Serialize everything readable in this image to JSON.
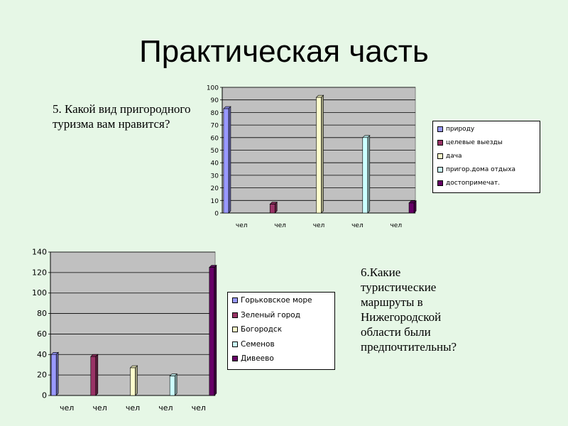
{
  "slide": {
    "title": "Практическая часть",
    "question1": "5. Какой вид пригородного туризма вам нравится?",
    "question2": "6.Какие туристические маршруты в Нижегородской области были предпочтительны?"
  },
  "chart_data": [
    {
      "type": "bar",
      "categories": [
        "чел",
        "чел",
        "чел",
        "чел",
        "чел"
      ],
      "ylim": [
        0,
        100
      ],
      "yticks": [
        0,
        10,
        20,
        30,
        40,
        50,
        60,
        70,
        80,
        90,
        100
      ],
      "grid": true,
      "legend_position": "right",
      "series": [
        {
          "name": "природу",
          "color": "#9999ff",
          "values": [
            83,
            0,
            0,
            0,
            0
          ]
        },
        {
          "name": "целевые выезды",
          "color": "#993366",
          "values": [
            0,
            7,
            0,
            0,
            0
          ]
        },
        {
          "name": "дача",
          "color": "#ffffcc",
          "values": [
            0,
            0,
            92,
            0,
            0
          ]
        },
        {
          "name": "пригор.дома отдыха",
          "color": "#ccffff",
          "values": [
            0,
            0,
            0,
            60,
            0
          ]
        },
        {
          "name": "достопримечат.",
          "color": "#660066",
          "values": [
            0,
            0,
            0,
            0,
            8
          ]
        }
      ]
    },
    {
      "type": "bar",
      "categories": [
        "чел",
        "чел",
        "чел",
        "чел",
        "чел"
      ],
      "ylim": [
        0,
        140
      ],
      "yticks": [
        0,
        20,
        40,
        60,
        80,
        100,
        120,
        140
      ],
      "grid": true,
      "legend_position": "right",
      "series": [
        {
          "name": "Горьковское море",
          "color": "#9999ff",
          "values": [
            40,
            0,
            0,
            0,
            0
          ]
        },
        {
          "name": "Зеленый город",
          "color": "#993366",
          "values": [
            0,
            38,
            0,
            0,
            0
          ]
        },
        {
          "name": "Богородск",
          "color": "#ffffcc",
          "values": [
            0,
            0,
            27,
            0,
            0
          ]
        },
        {
          "name": "Семенов",
          "color": "#ccffff",
          "values": [
            0,
            0,
            0,
            19,
            0
          ]
        },
        {
          "name": "Дивеево",
          "color": "#660066",
          "values": [
            0,
            0,
            0,
            0,
            125
          ]
        }
      ]
    }
  ]
}
